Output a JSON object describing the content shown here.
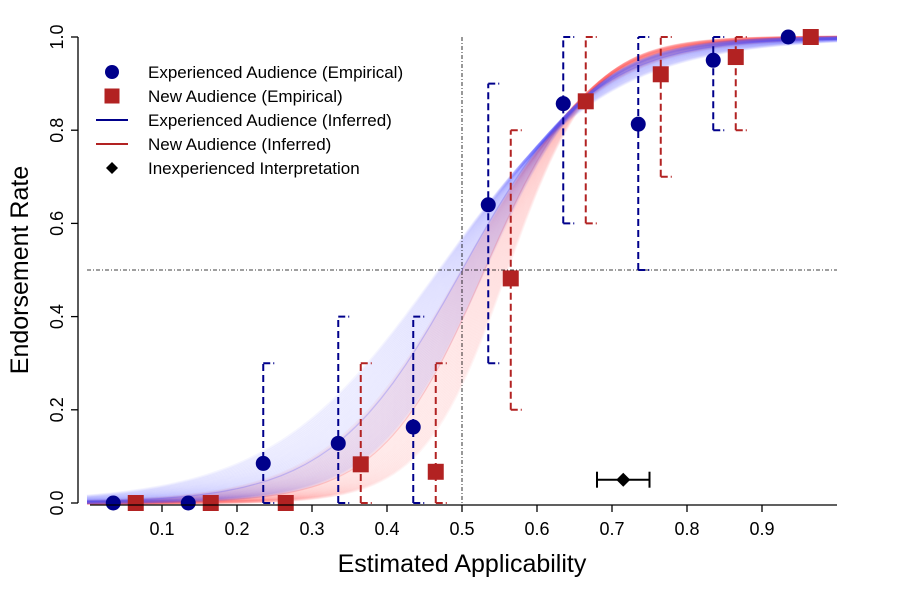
{
  "chart_data": {
    "type": "scatter",
    "xlabel": "Estimated Applicability",
    "ylabel": "Endorsement Rate",
    "xlim": [
      0.0,
      1.0
    ],
    "ylim": [
      0.0,
      1.0
    ],
    "x_ticks": [
      0.1,
      0.2,
      0.3,
      0.4,
      0.5,
      0.6,
      0.7,
      0.8,
      0.9
    ],
    "x_tick_labels": [
      "0.1",
      "0.2",
      "0.3",
      "0.4",
      "0.5",
      "0.6",
      "0.7",
      "0.8",
      "0.9"
    ],
    "y_ticks": [
      0.0,
      0.2,
      0.4,
      0.6,
      0.8,
      1.0
    ],
    "y_tick_labels": [
      "0.0",
      "0.2",
      "0.4",
      "0.6",
      "0.8",
      "1.0"
    ],
    "grid": false,
    "legend_position": "top-left",
    "reference_lines": {
      "x": 0.5,
      "y": 0.5
    },
    "series": [
      {
        "name": "Experienced Audience (Empirical)",
        "kind": "points",
        "marker": "circle",
        "color": "#00008B",
        "x": [
          0.035,
          0.135,
          0.235,
          0.335,
          0.435,
          0.535,
          0.635,
          0.735,
          0.835,
          0.935
        ],
        "y": [
          0.0,
          0.0,
          0.085,
          0.128,
          0.163,
          0.64,
          0.857,
          0.813,
          0.95,
          1.0
        ],
        "ci_low": [
          0.0,
          0.0,
          0.0,
          0.0,
          0.0,
          0.3,
          0.6,
          0.5,
          0.8,
          1.0
        ],
        "ci_high": [
          0.0,
          0.0,
          0.3,
          0.4,
          0.4,
          0.9,
          1.0,
          1.0,
          1.0,
          1.0
        ]
      },
      {
        "name": "New Audience (Empirical)",
        "kind": "points",
        "marker": "square",
        "color": "#B22222",
        "x": [
          0.065,
          0.165,
          0.265,
          0.365,
          0.465,
          0.565,
          0.665,
          0.765,
          0.865,
          0.965
        ],
        "y": [
          0.0,
          0.0,
          0.0,
          0.083,
          0.067,
          0.482,
          0.862,
          0.92,
          0.957,
          1.0
        ],
        "ci_low": [
          0.0,
          0.0,
          0.0,
          0.0,
          0.0,
          0.2,
          0.6,
          0.7,
          0.8,
          1.0
        ],
        "ci_high": [
          0.0,
          0.0,
          0.0,
          0.3,
          0.3,
          0.8,
          1.0,
          1.0,
          1.0,
          1.0
        ]
      },
      {
        "name": "Experienced Audience (Inferred)",
        "kind": "curve-band",
        "color": "#00008B",
        "band_color": "#4D4DFF",
        "midpoint": 0.5,
        "slope": 11.5
      },
      {
        "name": "New Audience (Inferred)",
        "kind": "curve-band",
        "color": "#B22222",
        "band_color": "#FF5A5A",
        "midpoint": 0.53,
        "slope": 14.5
      },
      {
        "name": "Inexperienced Interpretation",
        "kind": "point-with-interval",
        "marker": "diamond",
        "color": "#000000",
        "x": 0.715,
        "y": 0.05,
        "x_low": 0.68,
        "x_high": 0.75
      }
    ]
  }
}
